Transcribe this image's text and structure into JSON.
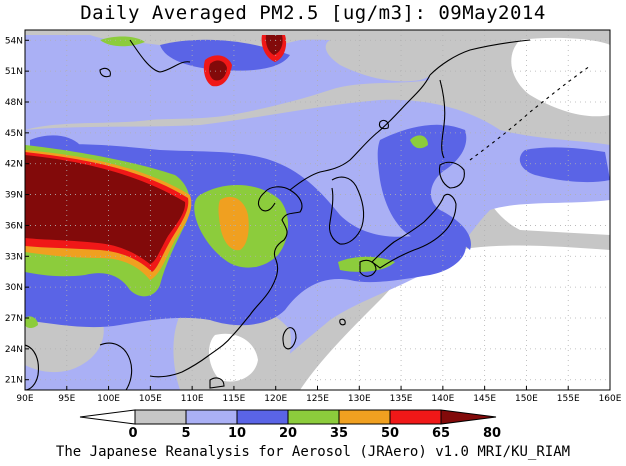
{
  "title": "Daily Averaged PM2.5 [ug/m3]: 09May2014",
  "footer": "The Japanese Reanalysis for Aerosol (JRAero) v1.0 MRI/KU_RIAM",
  "map": {
    "lon_range": [
      90,
      160
    ],
    "lat_range": [
      20,
      55
    ],
    "lon_ticks": [
      "90E",
      "95E",
      "100E",
      "105E",
      "110E",
      "115E",
      "120E",
      "125E",
      "130E",
      "135E",
      "140E",
      "145E",
      "150E",
      "155E",
      "160E"
    ],
    "lat_ticks": [
      "21N",
      "24N",
      "27N",
      "30N",
      "33N",
      "36N",
      "39N",
      "42N",
      "45N",
      "48N",
      "51N",
      "54N"
    ]
  },
  "colorbar": {
    "levels": [
      "0",
      "5",
      "10",
      "20",
      "35",
      "50",
      "65",
      "80"
    ],
    "colors": {
      "below": "#ffffff",
      "0_5": "#ffffff",
      "5_10": "#c6c6c6",
      "10_20": "#aab0f5",
      "20_35": "#5a64e6",
      "35_50": "#8ccc3c",
      "50_65": "#f0a020",
      "65_80": "#f01818",
      "above": "#820a0a"
    }
  },
  "colors": {
    "coast": "#000000",
    "grid": "#b0b0b0"
  }
}
